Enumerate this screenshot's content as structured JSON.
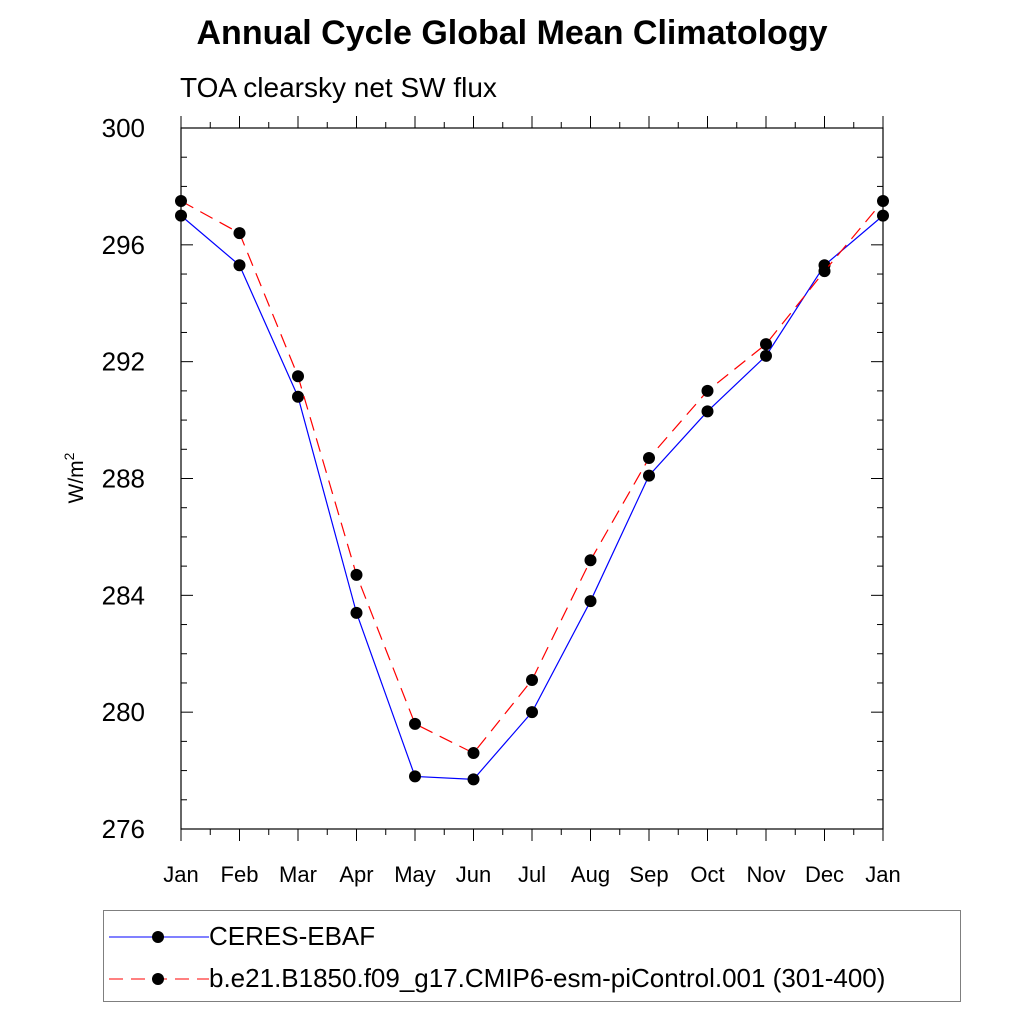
{
  "title": "Annual Cycle Global Mean Climatology",
  "subtitle": "TOA clearsky net SW flux",
  "chart_data": {
    "type": "line",
    "title": "Annual Cycle Global Mean Climatology",
    "subtitle": "TOA clearsky net SW flux",
    "xlabel": "",
    "ylabel": "W/m",
    "ylabel_superscript": "2",
    "categories": [
      "Jan",
      "Feb",
      "Mar",
      "Apr",
      "May",
      "Jun",
      "Jul",
      "Aug",
      "Sep",
      "Oct",
      "Nov",
      "Dec",
      "Jan"
    ],
    "yticks": [
      "276",
      "280",
      "284",
      "288",
      "292",
      "296",
      "300"
    ],
    "ylim": [
      276,
      300
    ],
    "grid": false,
    "legend_position": "bottom",
    "series": [
      {
        "name": "CERES-EBAF",
        "color": "#0000ff",
        "line_style": "solid",
        "marker": "filled-circle",
        "values": [
          297.0,
          295.3,
          290.8,
          283.4,
          277.8,
          277.7,
          280.0,
          283.8,
          288.1,
          290.3,
          292.2,
          295.3,
          297.0
        ]
      },
      {
        "name": "b.e21.B1850.f09_g17.CMIP6-esm-piControl.001 (301-400)",
        "color": "#ff0000",
        "line_style": "dashed",
        "marker": "filled-circle",
        "values": [
          297.5,
          296.4,
          291.5,
          284.7,
          279.6,
          278.6,
          281.1,
          285.2,
          288.7,
          291.0,
          292.6,
          295.1,
          297.5
        ]
      }
    ]
  }
}
